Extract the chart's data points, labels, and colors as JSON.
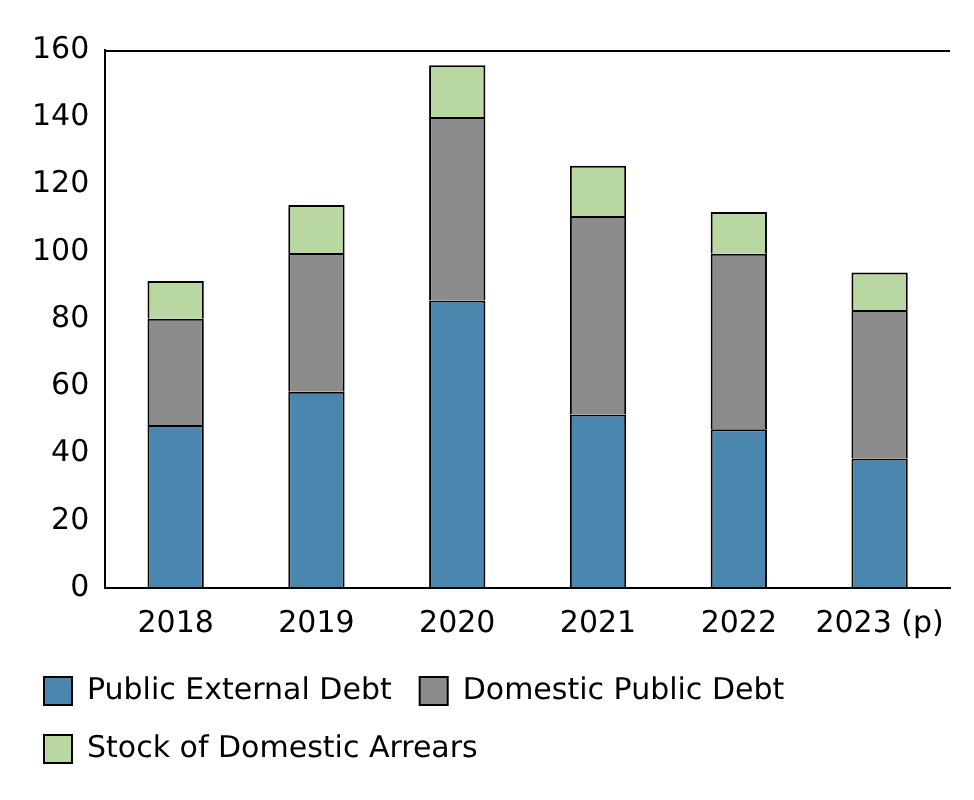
{
  "chart_data": {
    "type": "bar",
    "stacked": true,
    "categories": [
      "2018",
      "2019",
      "2020",
      "2021",
      "2022",
      "2023 (p)"
    ],
    "series": [
      {
        "name": "Public External Debt",
        "color": "#4a86ad",
        "values": [
          48.5,
          58.4,
          85.5,
          51.6,
          47.2,
          38.5
        ]
      },
      {
        "name": "Domestic Public Debt",
        "color": "#8c8c8c",
        "values": [
          31.6,
          41.2,
          54.6,
          59,
          52.2,
          44.2
        ]
      },
      {
        "name": "Stock of Domestic Arrears",
        "color": "#b9d7a0",
        "values": [
          11.2,
          14.3,
          15.4,
          15,
          12.4,
          11.1
        ]
      }
    ],
    "ylim": [
      0,
      160
    ],
    "yticks": [
      0,
      20,
      40,
      60,
      80,
      100,
      120,
      140,
      160
    ],
    "grid": false,
    "legend": "bottom"
  }
}
